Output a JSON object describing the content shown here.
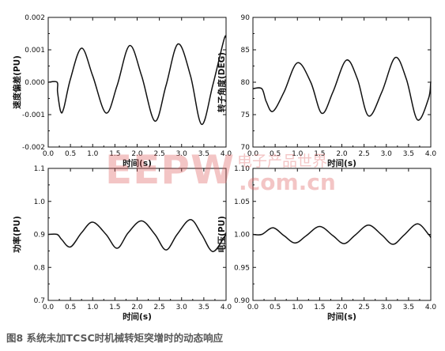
{
  "figure": {
    "caption": "图8   系统未加TCSC时机械转矩突增时的动态响应",
    "watermark_logo": "EEPW",
    "watermark_cn": "电子产品世界",
    "watermark_url": ".com.cn"
  },
  "chart_data": [
    {
      "id": "speed",
      "type": "line",
      "ylabel": "速度偏差(PU)",
      "xlabel": "时间(s)",
      "xlim": [
        0.0,
        4.0
      ],
      "ylim": [
        -0.002,
        0.002
      ],
      "xticks": [
        "0.0",
        "0.5",
        "1.0",
        "1.5",
        "2.0",
        "2.5",
        "3.0",
        "3.5",
        "4.0"
      ],
      "yticks": [
        {
          "v": -0.002,
          "label": "-0.002"
        },
        {
          "v": -0.001,
          "label": "-0.001"
        },
        {
          "v": 0.0,
          "label": "0.000"
        },
        {
          "v": 0.001,
          "label": "0.001"
        },
        {
          "v": 0.002,
          "label": "0.002"
        }
      ],
      "series": [
        {
          "x": [
            0.0,
            0.2,
            0.21,
            0.28,
            0.35,
            0.5,
            0.75,
            1.0,
            1.3,
            1.55,
            1.83,
            2.1,
            2.4,
            2.65,
            2.92,
            3.2,
            3.45,
            3.7,
            3.95,
            4.0
          ],
          "y": [
            0.0,
            0.0,
            -0.0003,
            -0.0009,
            -0.0008,
            0.0001,
            0.00105,
            0.0002,
            -0.00095,
            -0.0001,
            0.00113,
            0.0002,
            -0.0012,
            -0.0001,
            0.00118,
            0.0002,
            -0.0013,
            -0.0001,
            0.0013,
            0.00138
          ]
        }
      ]
    },
    {
      "id": "rotor",
      "type": "line",
      "ylabel": "转子角度(DEG)",
      "xlabel": "时间(s)",
      "xlim": [
        0.0,
        4.0
      ],
      "ylim": [
        70,
        90
      ],
      "xticks": [
        "0.0",
        "0.5",
        "1.0",
        "1.5",
        "2.0",
        "2.5",
        "3.0",
        "3.5",
        "4.0"
      ],
      "yticks": [
        {
          "v": 70,
          "label": "70"
        },
        {
          "v": 75,
          "label": "75"
        },
        {
          "v": 80,
          "label": "80"
        },
        {
          "v": 85,
          "label": "85"
        },
        {
          "v": 90,
          "label": "90"
        }
      ],
      "series": [
        {
          "x": [
            0.0,
            0.2,
            0.3,
            0.45,
            0.7,
            1.0,
            1.3,
            1.55,
            1.8,
            2.1,
            2.35,
            2.6,
            2.9,
            3.2,
            3.45,
            3.7,
            3.95,
            4.0
          ],
          "y": [
            79.0,
            79.0,
            77.0,
            75.5,
            78.5,
            83.0,
            80.0,
            75.2,
            78.5,
            83.4,
            80.5,
            74.8,
            78.5,
            83.8,
            80.5,
            74.2,
            77.5,
            80.1
          ]
        }
      ]
    },
    {
      "id": "power",
      "type": "line",
      "ylabel": "功率(PU)",
      "xlabel": "时间(s)",
      "xlim": [
        0.0,
        4.0
      ],
      "ylim": [
        0.7,
        1.1
      ],
      "xticks": [
        "0.0",
        "0.5",
        "1.0",
        "1.5",
        "2.0",
        "2.5",
        "3.0",
        "3.5",
        "4.0"
      ],
      "yticks": [
        {
          "v": 0.7,
          "label": "0.7"
        },
        {
          "v": 0.8,
          "label": "0.8"
        },
        {
          "v": 0.9,
          "label": "0.9"
        },
        {
          "v": 1.0,
          "label": "1.0"
        },
        {
          "v": 1.1,
          "label": "1.1"
        }
      ],
      "series": [
        {
          "x": [
            0.0,
            0.2,
            0.3,
            0.5,
            0.75,
            1.0,
            1.3,
            1.55,
            1.8,
            2.1,
            2.4,
            2.65,
            2.9,
            3.2,
            3.45,
            3.7,
            3.95,
            4.0
          ],
          "y": [
            0.9,
            0.9,
            0.885,
            0.862,
            0.905,
            0.937,
            0.9,
            0.858,
            0.905,
            0.941,
            0.9,
            0.853,
            0.9,
            0.945,
            0.9,
            0.848,
            0.89,
            0.905
          ]
        }
      ]
    },
    {
      "id": "voltage",
      "type": "line",
      "ylabel": "电压(PU)",
      "xlabel": "时间(s)",
      "xlim": [
        0.0,
        4.0
      ],
      "ylim": [
        0.9,
        1.1
      ],
      "xticks": [
        "0.0",
        "0.5",
        "1.0",
        "1.5",
        "2.0",
        "2.5",
        "3.0",
        "3.5",
        "4.0"
      ],
      "yticks": [
        {
          "v": 0.9,
          "label": "0.90"
        },
        {
          "v": 0.95,
          "label": "0.95"
        },
        {
          "v": 1.0,
          "label": "1.00"
        },
        {
          "v": 1.05,
          "label": "1.05"
        },
        {
          "v": 1.1,
          "label": "1.10"
        }
      ],
      "series": [
        {
          "x": [
            0.0,
            0.2,
            0.45,
            0.7,
            0.95,
            1.2,
            1.5,
            1.8,
            2.05,
            2.3,
            2.6,
            2.9,
            3.15,
            3.4,
            3.7,
            3.95,
            4.0
          ],
          "y": [
            1.0,
            1.0,
            1.01,
            0.998,
            0.987,
            0.998,
            1.012,
            0.998,
            0.986,
            0.999,
            1.014,
            0.999,
            0.985,
            0.999,
            1.016,
            1.0,
            0.995
          ]
        }
      ]
    }
  ]
}
